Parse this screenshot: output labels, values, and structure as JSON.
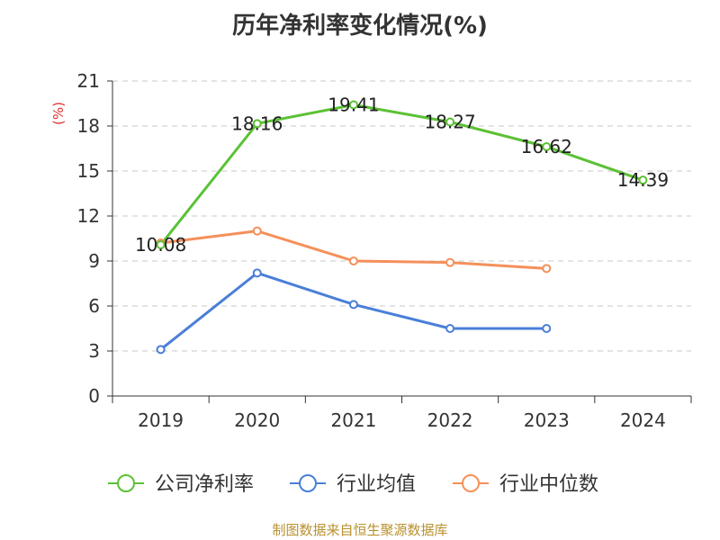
{
  "chart_data": {
    "type": "line",
    "title": "历年净利率变化情况(%)",
    "ylabel": "(%)",
    "xlabel": "",
    "categories": [
      "2019",
      "2020",
      "2021",
      "2022",
      "2023",
      "2024"
    ],
    "yticks": [
      "0",
      "3",
      "6",
      "9",
      "12",
      "15",
      "18",
      "21"
    ],
    "ylim": [
      0,
      21
    ],
    "grid": true,
    "legend_position": "bottom",
    "series": [
      {
        "name": "公司净利率",
        "color": "#5cc135",
        "values": [
          10.08,
          18.16,
          19.41,
          18.27,
          16.62,
          14.39
        ],
        "labels": [
          "10.08",
          "18.16",
          "19.41",
          "18.27",
          "16.62",
          "14.39"
        ]
      },
      {
        "name": "行业均值",
        "color": "#4a7fd8",
        "values": [
          3.1,
          8.2,
          6.1,
          4.5,
          4.5,
          null
        ]
      },
      {
        "name": "行业中位数",
        "color": "#f4905a",
        "values": [
          10.2,
          11.0,
          9.0,
          8.9,
          8.5,
          null
        ]
      }
    ]
  },
  "footer": {
    "source": "制图数据来自恒生聚源数据库"
  }
}
